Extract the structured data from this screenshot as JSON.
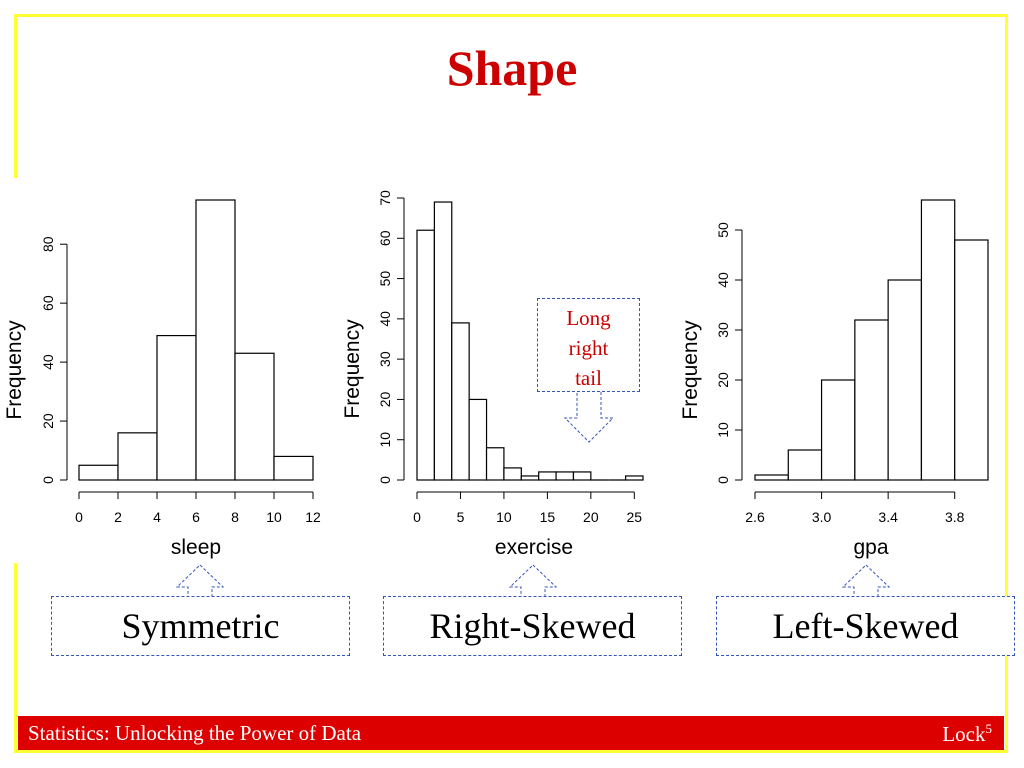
{
  "slide": {
    "title": "Shape",
    "footer_left": "Statistics: Unlocking the Power of Data",
    "footer_right": "Lock",
    "footer_sup": "5",
    "callout_lines": [
      "Long",
      "right",
      "tail"
    ],
    "labels": [
      "Symmetric",
      "Right-Skewed",
      "Left-Skewed"
    ],
    "colors": {
      "title": "#cc0000",
      "footer": "#dd0000",
      "border": "#ffff33",
      "callout_border": "#3355bb"
    }
  },
  "chart_data": [
    {
      "type": "bar",
      "subtype": "histogram",
      "xlabel": "sleep",
      "ylabel": "Frequency",
      "bin_edges": [
        0,
        2,
        4,
        6,
        8,
        10,
        12
      ],
      "values": [
        5,
        16,
        49,
        95,
        43,
        8
      ],
      "xlim": [
        0,
        12
      ],
      "xticks": [
        "0",
        "2",
        "4",
        "6",
        "8",
        "10",
        "12"
      ],
      "yticks": [
        "0",
        "20",
        "40",
        "60",
        "80"
      ],
      "ylim": [
        0,
        95
      ]
    },
    {
      "type": "bar",
      "subtype": "histogram",
      "xlabel": "exercise",
      "ylabel": "Frequency",
      "bin_edges": [
        0,
        2,
        4,
        6,
        8,
        10,
        12,
        14,
        16,
        18,
        20,
        22,
        24,
        26
      ],
      "values": [
        62,
        69,
        39,
        20,
        8,
        3,
        1,
        2,
        2,
        2,
        0,
        0,
        1
      ],
      "xlim": [
        0,
        26
      ],
      "xticks": [
        "0",
        "5",
        "10",
        "15",
        "20",
        "25"
      ],
      "yticks": [
        "0",
        "10",
        "20",
        "30",
        "40",
        "50",
        "60",
        "70"
      ],
      "ylim": [
        0,
        70
      ]
    },
    {
      "type": "bar",
      "subtype": "histogram",
      "xlabel": "gpa",
      "ylabel": "Frequency",
      "bin_edges": [
        2.6,
        2.8,
        3.0,
        3.2,
        3.4,
        3.6,
        3.8,
        4.0
      ],
      "values": [
        1,
        6,
        20,
        32,
        40,
        56,
        48
      ],
      "xlim": [
        2.6,
        4.0
      ],
      "xticks": [
        "2.6",
        "3.0",
        "3.4",
        "3.8"
      ],
      "yticks": [
        "0",
        "10",
        "20",
        "30",
        "40",
        "50"
      ],
      "ylim": [
        0,
        56
      ]
    }
  ]
}
